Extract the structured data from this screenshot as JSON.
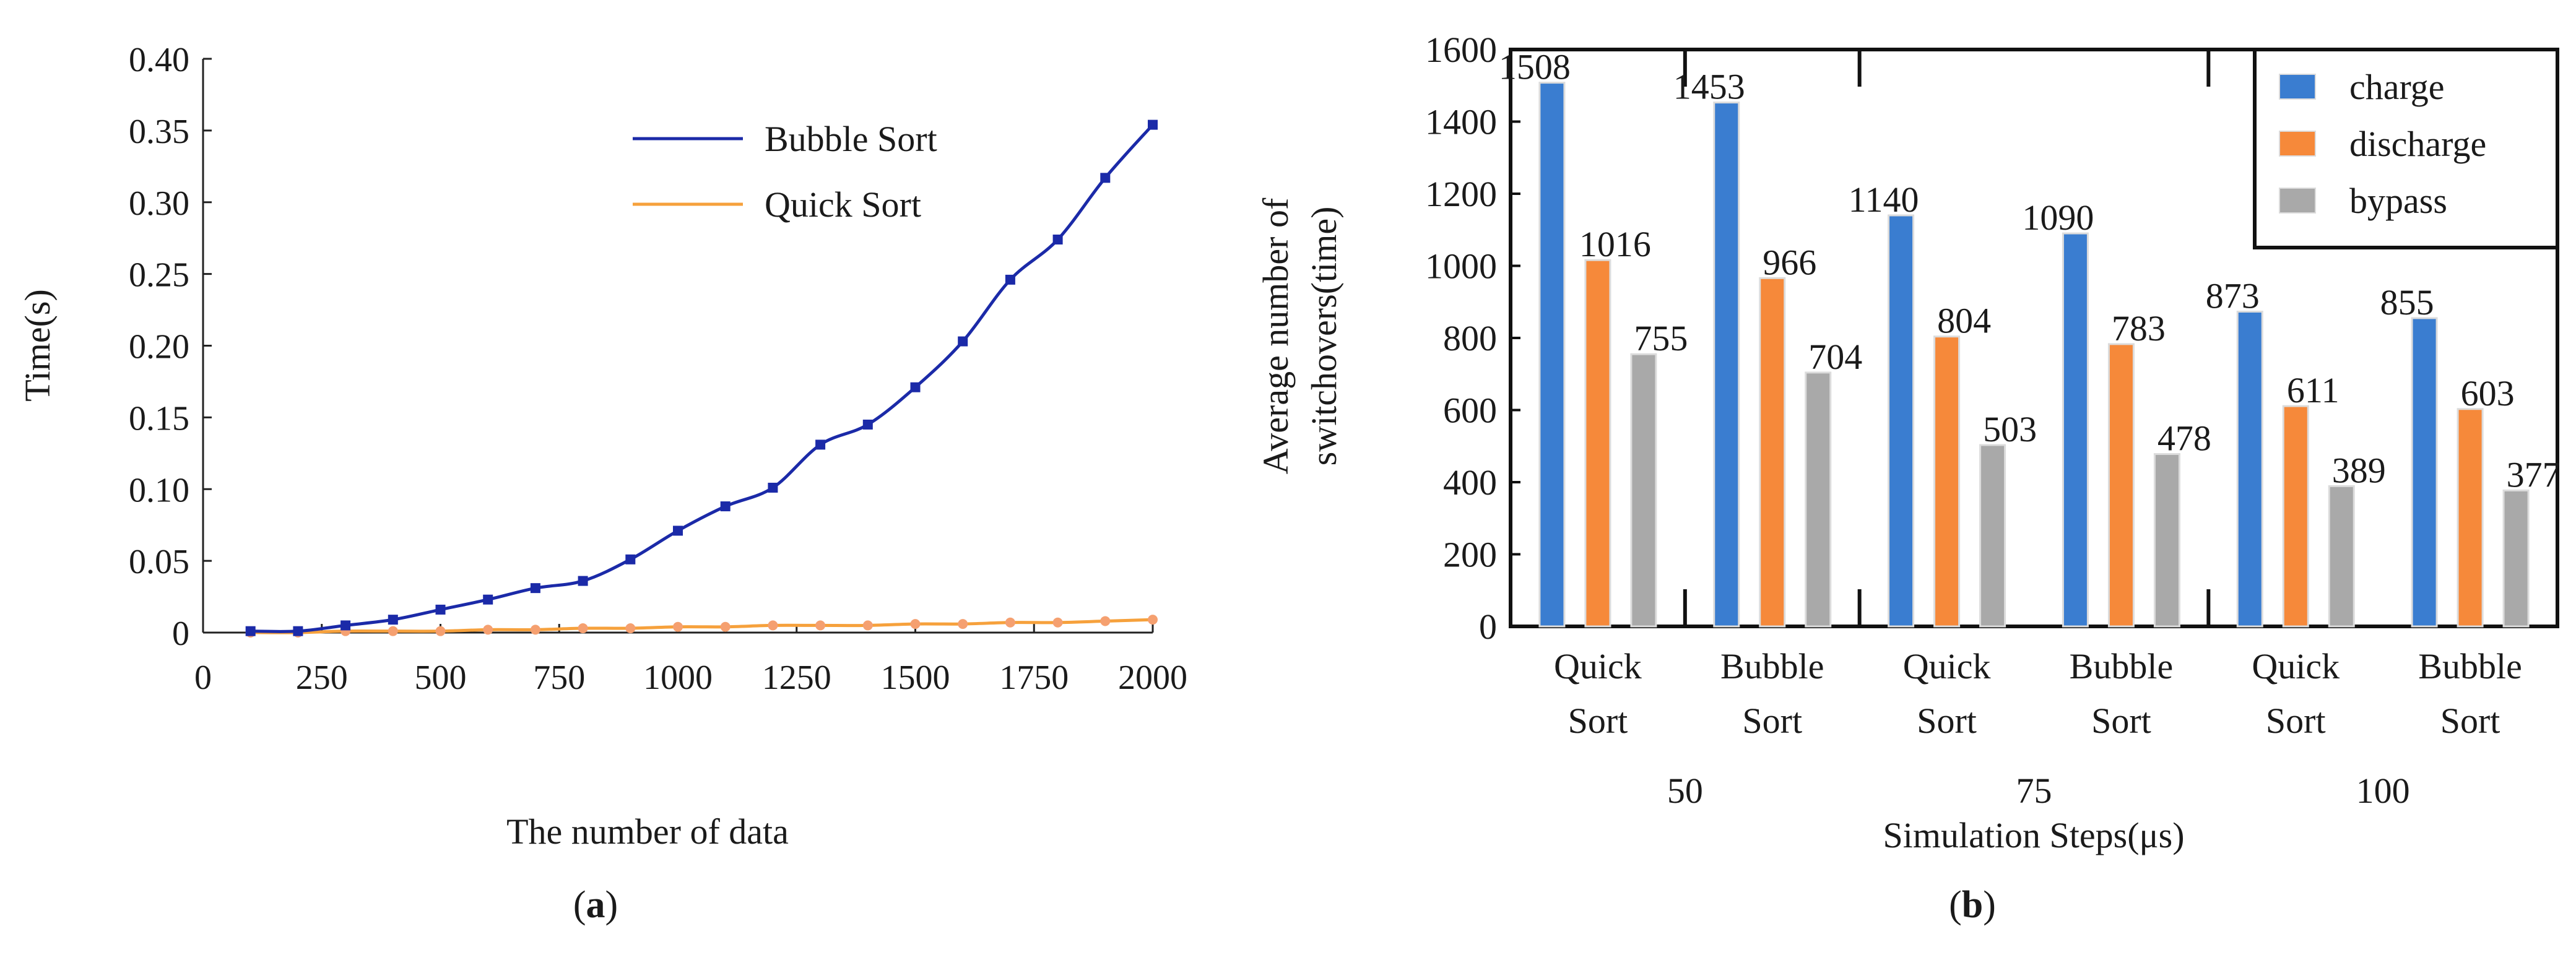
{
  "chart_data": [
    {
      "type": "line",
      "panel_label": "a",
      "xlabel": "The number of data",
      "ylabel": "Time(s)",
      "xlim": [
        0,
        2000
      ],
      "ylim": [
        0,
        0.4
      ],
      "x_ticks": [
        "0",
        "250",
        "500",
        "750",
        "1000",
        "1250",
        "1500",
        "1750",
        "2000"
      ],
      "y_ticks": [
        "0",
        "0.05",
        "0.10",
        "0.15",
        "0.20",
        "0.25",
        "0.30",
        "0.35",
        "0.40"
      ],
      "legend_position": "top-right",
      "grid": false,
      "series": [
        {
          "name": "Bubble Sort",
          "color": "#1b2aa8",
          "marker": "square",
          "x": [
            100,
            200,
            300,
            400,
            500,
            600,
            700,
            800,
            900,
            1000,
            1100,
            1200,
            1300,
            1400,
            1500,
            1600,
            1700,
            1800,
            1900,
            2000
          ],
          "y": [
            0.001,
            0.001,
            0.005,
            0.009,
            0.016,
            0.023,
            0.031,
            0.036,
            0.051,
            0.071,
            0.088,
            0.101,
            0.131,
            0.145,
            0.171,
            0.203,
            0.246,
            0.274,
            0.317,
            0.354
          ]
        },
        {
          "name": "Quick Sort",
          "color": "#f6a13c",
          "marker_color": "#f5a070",
          "marker": "circle",
          "x": [
            100,
            200,
            300,
            400,
            500,
            600,
            700,
            800,
            900,
            1000,
            1100,
            1200,
            1300,
            1400,
            1500,
            1600,
            1700,
            1800,
            1900,
            2000
          ],
          "y": [
            0.0,
            0.0,
            0.001,
            0.001,
            0.001,
            0.002,
            0.002,
            0.003,
            0.003,
            0.004,
            0.004,
            0.005,
            0.005,
            0.005,
            0.006,
            0.006,
            0.007,
            0.007,
            0.008,
            0.009
          ]
        }
      ]
    },
    {
      "type": "bar",
      "panel_label": "b",
      "xlabel": "Simulation Steps(μs)",
      "ylabel_lines": [
        "Average number of",
        "switchovers(time)"
      ],
      "ylim": [
        0,
        1600
      ],
      "y_ticks": [
        "0",
        "200",
        "400",
        "600",
        "800",
        "1000",
        "1200",
        "1400",
        "1600"
      ],
      "legend_position": "top-right",
      "grid": false,
      "groups": [
        {
          "label": "50",
          "categories": [
            [
              "Quick",
              "Sort"
            ],
            [
              "Bubble",
              "Sort"
            ]
          ]
        },
        {
          "label": "75",
          "categories": [
            [
              "Quick",
              "Sort"
            ],
            [
              "Bubble",
              "Sort"
            ]
          ]
        },
        {
          "label": "100",
          "categories": [
            [
              "Quick",
              "Sort"
            ],
            [
              "Bubble",
              "Sort"
            ]
          ]
        }
      ],
      "series": [
        {
          "name": "charge",
          "color": "#3a7dd0",
          "values": [
            1508,
            1453,
            1140,
            1090,
            873,
            855
          ]
        },
        {
          "name": "discharge",
          "color": "#f6893a",
          "values": [
            1016,
            966,
            804,
            783,
            611,
            603
          ]
        },
        {
          "name": "bypass",
          "color": "#a9a9a9",
          "values": [
            755,
            704,
            503,
            478,
            389,
            377
          ]
        }
      ]
    }
  ]
}
